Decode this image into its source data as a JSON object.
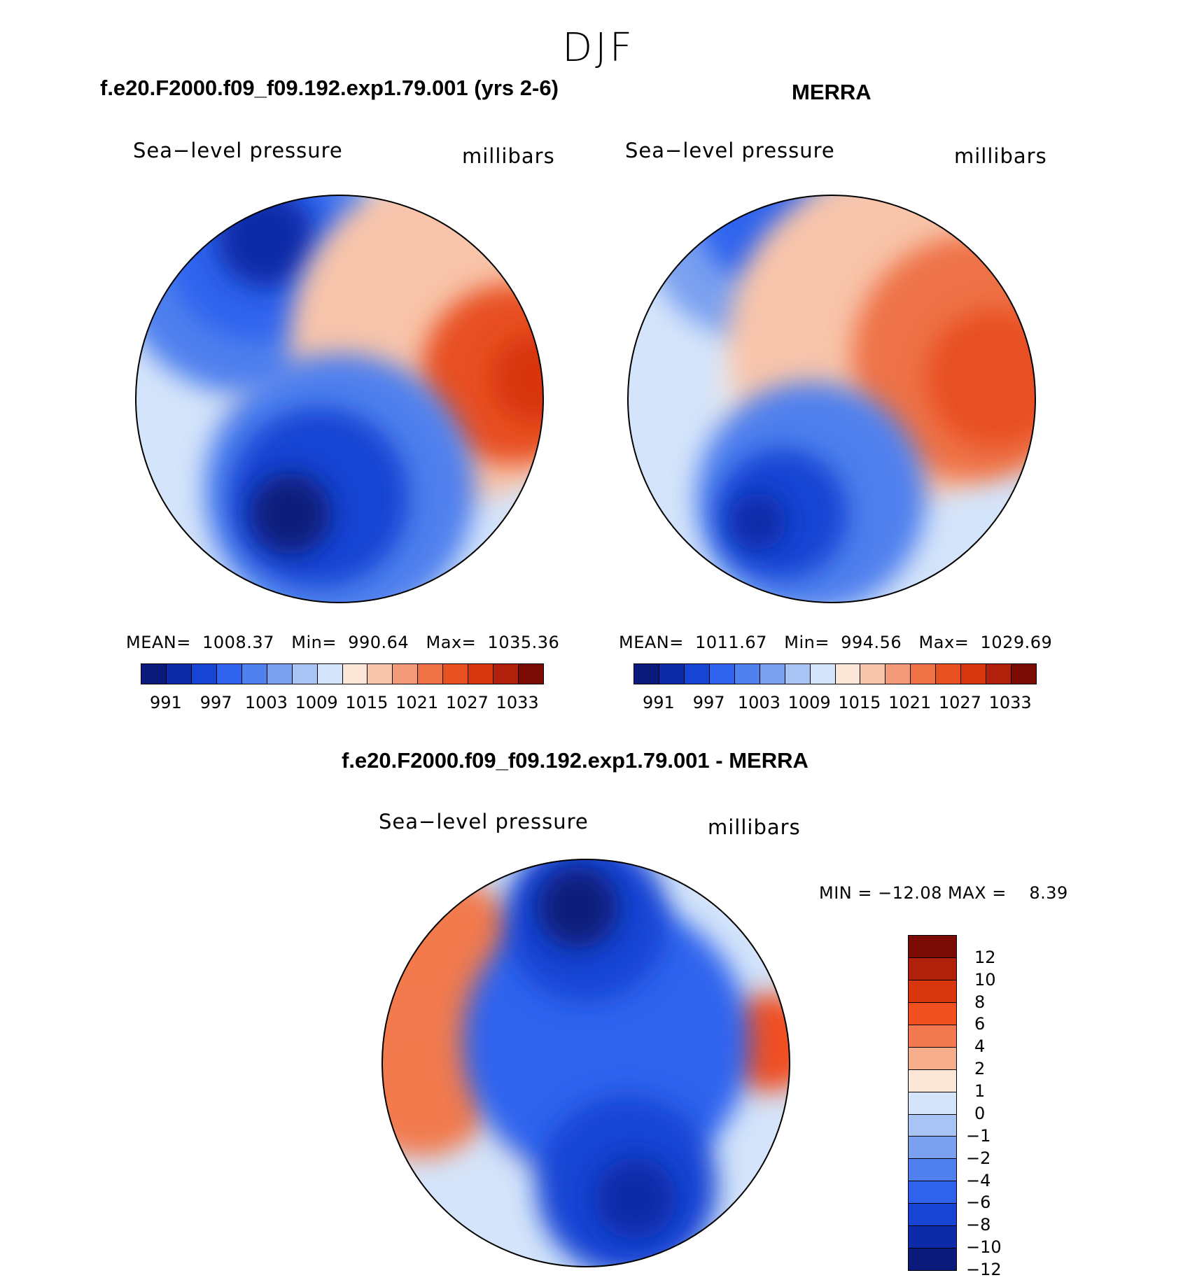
{
  "season": "DJF",
  "chart_data": [
    {
      "type": "heatmap",
      "title": "f.e20.F2000.f09_f09.192.exp1.79.001 (yrs 2-6)",
      "variable": "Sea−level pressure",
      "units": "millibars",
      "projection": "north-polar-stereographic",
      "stats_text": "MEAN=  1008.37   Min=  990.64   Max=  1035.36",
      "stats": {
        "mean": 1008.37,
        "min": 990.64,
        "max": 1035.36
      },
      "levels": [
        "991",
        "997",
        "1003",
        "1009",
        "1015",
        "1021",
        "1027",
        "1033"
      ],
      "colors": [
        "#0a1a7a",
        "#0d2aa8",
        "#1844d4",
        "#2f63ee",
        "#4f80ee",
        "#7aa0f0",
        "#a8c4f4",
        "#d4e4fa",
        "#fbe6d8",
        "#f8c4aa",
        "#f39a78",
        "#ee7246",
        "#e85022",
        "#d8360e",
        "#b0200a",
        "#7a0a04"
      ],
      "regions": [
        {
          "cx": 0.28,
          "cy": 0.16,
          "r": 0.33,
          "level": 4
        },
        {
          "cx": 0.3,
          "cy": 0.14,
          "r": 0.22,
          "level": 3
        },
        {
          "cx": 0.32,
          "cy": 0.11,
          "r": 0.12,
          "level": 1
        },
        {
          "cx": 0.78,
          "cy": 0.35,
          "r": 0.4,
          "level": 9
        },
        {
          "cx": 0.92,
          "cy": 0.44,
          "r": 0.22,
          "level": 12
        },
        {
          "cx": 0.98,
          "cy": 0.45,
          "r": 0.11,
          "level": 13
        },
        {
          "cx": 0.5,
          "cy": 0.72,
          "r": 0.33,
          "level": 4
        },
        {
          "cx": 0.45,
          "cy": 0.74,
          "r": 0.22,
          "level": 2
        },
        {
          "cx": 0.38,
          "cy": 0.78,
          "r": 0.1,
          "level": 0
        }
      ]
    },
    {
      "type": "heatmap",
      "title": "MERRA",
      "variable": "Sea−level pressure",
      "units": "millibars",
      "projection": "north-polar-stereographic",
      "stats_text": "MEAN=  1011.67   Min=  994.56   Max=  1029.69",
      "stats": {
        "mean": 1011.67,
        "min": 994.56,
        "max": 1029.69
      },
      "levels": [
        "991",
        "997",
        "1003",
        "1009",
        "1015",
        "1021",
        "1027",
        "1033"
      ],
      "colors": [
        "#0a1a7a",
        "#0d2aa8",
        "#1844d4",
        "#2f63ee",
        "#4f80ee",
        "#7aa0f0",
        "#a8c4f4",
        "#d4e4fa",
        "#fbe6d8",
        "#f8c4aa",
        "#f39a78",
        "#ee7246",
        "#e85022",
        "#d8360e",
        "#b0200a",
        "#7a0a04"
      ],
      "regions": [
        {
          "cx": 0.3,
          "cy": 0.1,
          "r": 0.25,
          "level": 5
        },
        {
          "cx": 0.32,
          "cy": 0.07,
          "r": 0.14,
          "level": 3
        },
        {
          "cx": 0.65,
          "cy": 0.35,
          "r": 0.4,
          "level": 9
        },
        {
          "cx": 0.85,
          "cy": 0.4,
          "r": 0.3,
          "level": 11
        },
        {
          "cx": 0.9,
          "cy": 0.45,
          "r": 0.17,
          "level": 12
        },
        {
          "cx": 0.45,
          "cy": 0.74,
          "r": 0.28,
          "level": 4
        },
        {
          "cx": 0.38,
          "cy": 0.78,
          "r": 0.16,
          "level": 2
        },
        {
          "cx": 0.32,
          "cy": 0.8,
          "r": 0.07,
          "level": 1
        }
      ]
    },
    {
      "type": "heatmap",
      "title": "f.e20.F2000.f09_f09.192.exp1.79.001 - MERRA",
      "variable": "Sea−level pressure",
      "units": "millibars",
      "projection": "north-polar-stereographic",
      "stats_text": "MIN = −12.08 MAX =    8.39",
      "stats": {
        "min": -12.08,
        "max": 8.39
      },
      "levels": [
        "12",
        "10",
        "8",
        "6",
        "4",
        "2",
        "1",
        "0",
        "−1",
        "−2",
        "−4",
        "−6",
        "−8",
        "−10",
        "−12"
      ],
      "colors": [
        "#7a0a04",
        "#b0200a",
        "#d8360e",
        "#f05020",
        "#f27a4e",
        "#f6ad8c",
        "#fbe6d8",
        "#d4e4fa",
        "#a8c4f4",
        "#7aa0f0",
        "#4f80ee",
        "#2f63ee",
        "#1844d4",
        "#0d2aa8",
        "#0a1a7a"
      ],
      "regions": [
        {
          "cx": 0.12,
          "cy": 0.3,
          "r": 0.26,
          "level": 4
        },
        {
          "cx": 0.1,
          "cy": 0.55,
          "r": 0.18,
          "level": 4
        },
        {
          "cx": 0.95,
          "cy": 0.45,
          "r": 0.12,
          "level": 3
        },
        {
          "cx": 0.42,
          "cy": 0.62,
          "r": 0.14,
          "level": 6
        },
        {
          "cx": 0.55,
          "cy": 0.45,
          "r": 0.35,
          "level": 11
        },
        {
          "cx": 0.5,
          "cy": 0.15,
          "r": 0.2,
          "level": 12
        },
        {
          "cx": 0.48,
          "cy": 0.12,
          "r": 0.1,
          "level": 14
        },
        {
          "cx": 0.6,
          "cy": 0.8,
          "r": 0.22,
          "level": 12
        },
        {
          "cx": 0.62,
          "cy": 0.83,
          "r": 0.1,
          "level": 13
        }
      ]
    }
  ]
}
